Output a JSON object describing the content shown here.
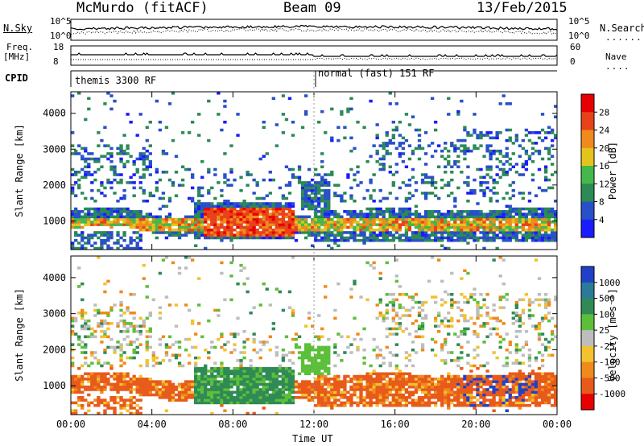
{
  "header": {
    "title": "McMurdo (fitACF)",
    "beam": "Beam 09",
    "date": "13/Feb/2015"
  },
  "top_panels": {
    "nsky_label": "N.Sky",
    "nsearch_label": "N.Search",
    "noise_ticks_left": [
      "10^5",
      "10^0"
    ],
    "noise_ticks_right": [
      "10^5",
      "10^0"
    ],
    "freq_label": "Freq.",
    "freq_unit": "[MHz]",
    "freq_ticks": [
      "18",
      "8"
    ],
    "nave_label": "Nave",
    "nave_ticks": [
      "60",
      "0"
    ],
    "cpid_label": "CPID",
    "cpid_segments": [
      "themis 3300 RF",
      "normal (fast) 151 RF"
    ]
  },
  "chart_data": [
    {
      "type": "heatmap",
      "ylabel": "Slant Range [km]",
      "y_ticks": [
        1000,
        2000,
        3000,
        4000
      ],
      "ylim": [
        200,
        4600
      ],
      "xlim": [
        0,
        24
      ],
      "x_ticks": [
        0,
        4,
        8,
        12,
        16,
        20,
        24
      ],
      "colorbar": {
        "label": "Power [dB]",
        "ticks": [
          "4",
          "8",
          "12",
          "16",
          "20",
          "24",
          "28"
        ],
        "colors": [
          "#1b1bff",
          "#2850c8",
          "#2b8a55",
          "#44b84a",
          "#e2c41c",
          "#f08a1c",
          "#e8421a",
          "#e80000"
        ]
      }
    },
    {
      "type": "heatmap",
      "ylabel": "Slant Range [km]",
      "y_ticks": [
        1000,
        2000,
        3000,
        4000
      ],
      "ylim": [
        200,
        4600
      ],
      "xlim": [
        0,
        24
      ],
      "x_ticks": [
        0,
        4,
        8,
        12,
        16,
        20,
        24
      ],
      "colorbar": {
        "label": "Velocity [m s⁻¹]",
        "ticks": [
          "1000",
          "500",
          "100",
          "25",
          "-25",
          "-100",
          "-500",
          "-1000"
        ],
        "colors": [
          "#2040c8",
          "#2a7a9a",
          "#2f8a55",
          "#5cbf3a",
          "#bdbdbd",
          "#f2c230",
          "#f08a1c",
          "#e85a1a",
          "#e80000"
        ]
      }
    }
  ],
  "x_tick_labels": [
    "00:00",
    "04:00",
    "08:00",
    "12:00",
    "16:00",
    "20:00",
    "00:00"
  ],
  "xlabel": "Time UT"
}
